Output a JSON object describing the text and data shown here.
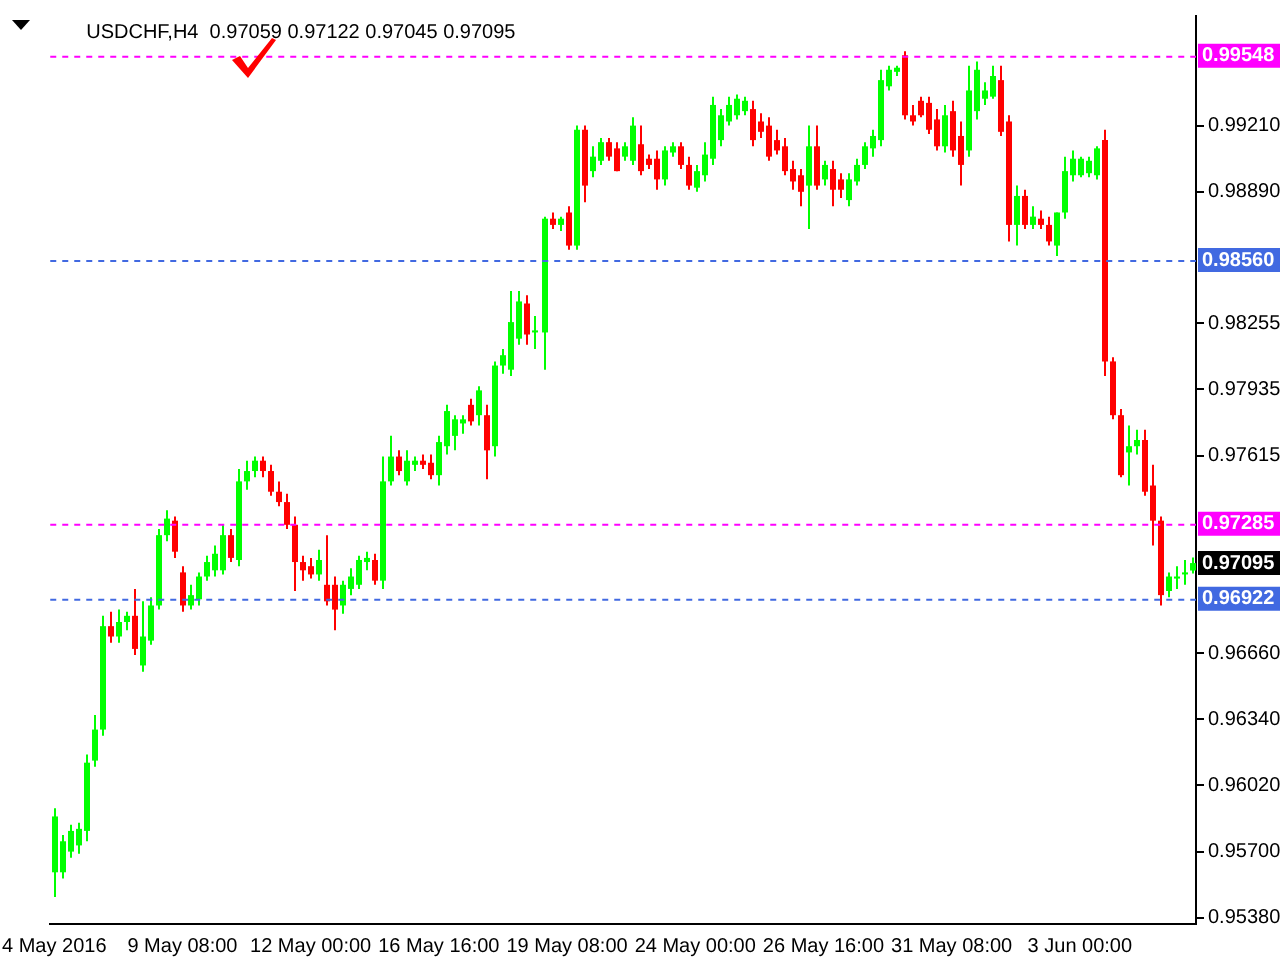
{
  "chart_data": {
    "type": "candlestick",
    "title": "USDCHF,H4  0.97059 0.97122 0.97045 0.97095",
    "categories": [
      "4 May 2016",
      null,
      null,
      null,
      null,
      null,
      null,
      null,
      null,
      null,
      null,
      null,
      null,
      null,
      null,
      null,
      "9 May 08:00",
      null,
      null,
      null,
      null,
      null,
      null,
      null,
      null,
      null,
      null,
      null,
      null,
      null,
      null,
      null,
      "12 May 00:00",
      null,
      null,
      null,
      null,
      null,
      null,
      null,
      null,
      null,
      null,
      null,
      null,
      null,
      null,
      null,
      "16 May 16:00",
      null,
      null,
      null,
      null,
      null,
      null,
      null,
      null,
      null,
      null,
      null,
      null,
      null,
      null,
      null,
      "19 May 08:00",
      null,
      null,
      null,
      null,
      null,
      null,
      null,
      null,
      null,
      null,
      null,
      null,
      null,
      null,
      null,
      "24 May 00:00",
      null,
      null,
      null,
      null,
      null,
      null,
      null,
      null,
      null,
      null,
      null,
      null,
      null,
      null,
      null,
      "26 May 16:00",
      null,
      null,
      null,
      null,
      null,
      null,
      null,
      null,
      null,
      null,
      null,
      null,
      null,
      null,
      null,
      "31 May 08:00",
      null,
      null,
      null,
      null,
      null,
      null,
      null,
      null,
      null,
      null,
      null,
      null,
      null,
      null,
      null,
      "3 Jun 00:00",
      null,
      null,
      null,
      null,
      null,
      null,
      null,
      null,
      null,
      null,
      null,
      null,
      null,
      null
    ],
    "ohlc": [
      [
        0.956,
        0.9591,
        0.9548,
        0.9587
      ],
      [
        0.956,
        0.9578,
        0.9557,
        0.9575
      ],
      [
        0.957,
        0.9583,
        0.9567,
        0.958
      ],
      [
        0.9573,
        0.9584,
        0.9569,
        0.9581
      ],
      [
        0.958,
        0.9617,
        0.9575,
        0.9613
      ],
      [
        0.9614,
        0.9636,
        0.9611,
        0.9629
      ],
      [
        0.9629,
        0.9684,
        0.9626,
        0.9679
      ],
      [
        0.9679,
        0.9686,
        0.9671,
        0.9674
      ],
      [
        0.9674,
        0.9687,
        0.9671,
        0.9681
      ],
      [
        0.9681,
        0.9686,
        0.9677,
        0.9684
      ],
      [
        0.9684,
        0.9697,
        0.9665,
        0.9668
      ],
      [
        0.966,
        0.9691,
        0.9657,
        0.9674
      ],
      [
        0.9672,
        0.9693,
        0.967,
        0.9689
      ],
      [
        0.9689,
        0.9726,
        0.9687,
        0.9723
      ],
      [
        0.9723,
        0.9735,
        0.972,
        0.9731
      ],
      [
        0.973,
        0.9732,
        0.9712,
        0.9715
      ],
      [
        0.9705,
        0.9708,
        0.9686,
        0.9689
      ],
      [
        0.9689,
        0.9699,
        0.9687,
        0.9694
      ],
      [
        0.9692,
        0.9705,
        0.9689,
        0.9703
      ],
      [
        0.9703,
        0.9713,
        0.9701,
        0.971
      ],
      [
        0.9706,
        0.9718,
        0.9703,
        0.9714
      ],
      [
        0.9706,
        0.9728,
        0.9704,
        0.9723
      ],
      [
        0.9723,
        0.9726,
        0.971,
        0.9712
      ],
      [
        0.9711,
        0.9755,
        0.9708,
        0.9749
      ],
      [
        0.9749,
        0.9759,
        0.9745,
        0.9754
      ],
      [
        0.9754,
        0.9761,
        0.9751,
        0.9759
      ],
      [
        0.9759,
        0.9761,
        0.9751,
        0.9754
      ],
      [
        0.9754,
        0.9757,
        0.9742,
        0.9744
      ],
      [
        0.9744,
        0.9749,
        0.9737,
        0.9739
      ],
      [
        0.9739,
        0.9743,
        0.9726,
        0.9728
      ],
      [
        0.9728,
        0.9732,
        0.9696,
        0.971
      ],
      [
        0.971,
        0.9713,
        0.9701,
        0.9706
      ],
      [
        0.9708,
        0.9712,
        0.9702,
        0.9704
      ],
      [
        0.9704,
        0.9716,
        0.9701,
        0.9711
      ],
      [
        0.9699,
        0.9723,
        0.9689,
        0.9691
      ],
      [
        0.9699,
        0.9703,
        0.9677,
        0.9687
      ],
      [
        0.9689,
        0.9701,
        0.9685,
        0.9699
      ],
      [
        0.9697,
        0.9707,
        0.9694,
        0.9703
      ],
      [
        0.9699,
        0.9713,
        0.9697,
        0.9711
      ],
      [
        0.971,
        0.9715,
        0.9706,
        0.9712
      ],
      [
        0.9711,
        0.9714,
        0.9699,
        0.9701
      ],
      [
        0.9701,
        0.9761,
        0.9697,
        0.9749
      ],
      [
        0.9749,
        0.9771,
        0.9747,
        0.9761
      ],
      [
        0.9761,
        0.9764,
        0.9752,
        0.9754
      ],
      [
        0.9749,
        0.9764,
        0.9747,
        0.9759
      ],
      [
        0.9757,
        0.9761,
        0.9754,
        0.9759
      ],
      [
        0.9759,
        0.9762,
        0.9755,
        0.9757
      ],
      [
        0.9758,
        0.9762,
        0.975,
        0.9752
      ],
      [
        0.9752,
        0.9771,
        0.9747,
        0.9768
      ],
      [
        0.9766,
        0.9786,
        0.9762,
        0.9783
      ],
      [
        0.9771,
        0.9781,
        0.9764,
        0.9779
      ],
      [
        0.9777,
        0.9781,
        0.9772,
        0.9779
      ],
      [
        0.9786,
        0.9789,
        0.9776,
        0.9778
      ],
      [
        0.9781,
        0.9795,
        0.9776,
        0.9793
      ],
      [
        0.9781,
        0.9786,
        0.975,
        0.9764
      ],
      [
        0.9766,
        0.9807,
        0.9761,
        0.9805
      ],
      [
        0.9805,
        0.9813,
        0.9801,
        0.981
      ],
      [
        0.9803,
        0.9841,
        0.98,
        0.9826
      ],
      [
        0.9818,
        0.9841,
        0.9815,
        0.9836
      ],
      [
        0.9835,
        0.9839,
        0.9815,
        0.982
      ],
      [
        0.9821,
        0.9829,
        0.9813,
        0.9822
      ],
      [
        0.9821,
        0.9877,
        0.9803,
        0.9876
      ],
      [
        0.9876,
        0.9879,
        0.9871,
        0.9873
      ],
      [
        0.9873,
        0.9877,
        0.987,
        0.9876
      ],
      [
        0.9879,
        0.9882,
        0.9861,
        0.9863
      ],
      [
        0.9863,
        0.9921,
        0.9861,
        0.9919
      ],
      [
        0.9919,
        0.9921,
        0.9884,
        0.9892
      ],
      [
        0.9899,
        0.9911,
        0.9896,
        0.9906
      ],
      [
        0.9904,
        0.9915,
        0.9902,
        0.9913
      ],
      [
        0.9913,
        0.9915,
        0.9904,
        0.9906
      ],
      [
        0.991,
        0.9913,
        0.9899,
        0.9899
      ],
      [
        0.9906,
        0.9913,
        0.9904,
        0.9911
      ],
      [
        0.9904,
        0.9925,
        0.9902,
        0.9921
      ],
      [
        0.9912,
        0.9921,
        0.9897,
        0.9899
      ],
      [
        0.9905,
        0.9907,
        0.99,
        0.9902
      ],
      [
        0.9905,
        0.9909,
        0.989,
        0.9895
      ],
      [
        0.9895,
        0.9911,
        0.9892,
        0.9909
      ],
      [
        0.9908,
        0.9913,
        0.9906,
        0.9911
      ],
      [
        0.9911,
        0.9913,
        0.99,
        0.9902
      ],
      [
        0.9902,
        0.9906,
        0.989,
        0.9892
      ],
      [
        0.9891,
        0.9902,
        0.9889,
        0.9899
      ],
      [
        0.9897,
        0.9913,
        0.9894,
        0.9907
      ],
      [
        0.9905,
        0.9935,
        0.9902,
        0.9931
      ],
      [
        0.9914,
        0.9929,
        0.9911,
        0.9926
      ],
      [
        0.9923,
        0.9935,
        0.9921,
        0.9931
      ],
      [
        0.9926,
        0.9936,
        0.9924,
        0.9934
      ],
      [
        0.9928,
        0.9935,
        0.9926,
        0.9933
      ],
      [
        0.9929,
        0.9933,
        0.9911,
        0.9914
      ],
      [
        0.9923,
        0.9927,
        0.9915,
        0.9918
      ],
      [
        0.9921,
        0.9925,
        0.9904,
        0.9906
      ],
      [
        0.9914,
        0.9919,
        0.9907,
        0.9909
      ],
      [
        0.9911,
        0.9915,
        0.9897,
        0.9899
      ],
      [
        0.99,
        0.9904,
        0.989,
        0.9894
      ],
      [
        0.9897,
        0.99,
        0.9882,
        0.9889
      ],
      [
        0.9892,
        0.9921,
        0.9871,
        0.9911
      ],
      [
        0.9911,
        0.9921,
        0.989,
        0.9892
      ],
      [
        0.9895,
        0.9904,
        0.9892,
        0.9902
      ],
      [
        0.99,
        0.9904,
        0.9882,
        0.989
      ],
      [
        0.9895,
        0.9898,
        0.9886,
        0.989
      ],
      [
        0.9885,
        0.9898,
        0.9882,
        0.9895
      ],
      [
        0.9894,
        0.9905,
        0.9892,
        0.9902
      ],
      [
        0.9902,
        0.9913,
        0.99,
        0.9911
      ],
      [
        0.991,
        0.9919,
        0.9906,
        0.9916
      ],
      [
        0.9914,
        0.9948,
        0.9911,
        0.9943
      ],
      [
        0.994,
        0.995,
        0.9938,
        0.9948
      ],
      [
        0.9947,
        0.995,
        0.9945,
        0.9949
      ],
      [
        0.9955,
        0.9957,
        0.9924,
        0.9926
      ],
      [
        0.9926,
        0.9931,
        0.9921,
        0.9923
      ],
      [
        0.9933,
        0.9935,
        0.9925,
        0.9926
      ],
      [
        0.9932,
        0.9935,
        0.9917,
        0.9919
      ],
      [
        0.9924,
        0.9929,
        0.9909,
        0.9911
      ],
      [
        0.9911,
        0.9931,
        0.9908,
        0.9926
      ],
      [
        0.9928,
        0.9933,
        0.9906,
        0.9909
      ],
      [
        0.9916,
        0.9923,
        0.9892,
        0.9902
      ],
      [
        0.9909,
        0.995,
        0.9906,
        0.9938
      ],
      [
        0.9928,
        0.9952,
        0.9924,
        0.9948
      ],
      [
        0.9934,
        0.9942,
        0.9931,
        0.9938
      ],
      [
        0.9935,
        0.995,
        0.9934,
        0.9945
      ],
      [
        0.9943,
        0.995,
        0.9916,
        0.9918
      ],
      [
        0.9923,
        0.9926,
        0.9865,
        0.9873
      ],
      [
        0.9873,
        0.9892,
        0.9863,
        0.9887
      ],
      [
        0.9887,
        0.989,
        0.9871,
        0.9873
      ],
      [
        0.9873,
        0.9882,
        0.9871,
        0.9877
      ],
      [
        0.9876,
        0.988,
        0.9871,
        0.9873
      ],
      [
        0.9873,
        0.9877,
        0.9863,
        0.9865
      ],
      [
        0.9863,
        0.9879,
        0.9858,
        0.9879
      ],
      [
        0.9879,
        0.9906,
        0.9876,
        0.9899
      ],
      [
        0.9897,
        0.9909,
        0.9894,
        0.9905
      ],
      [
        0.9897,
        0.9906,
        0.9896,
        0.9905
      ],
      [
        0.9898,
        0.9906,
        0.9896,
        0.9904
      ],
      [
        0.9897,
        0.9911,
        0.9895,
        0.991
      ],
      [
        0.9914,
        0.9919,
        0.98,
        0.9807
      ],
      [
        0.9807,
        0.9809,
        0.9779,
        0.9781
      ],
      [
        0.9781,
        0.9784,
        0.9751,
        0.9752
      ],
      [
        0.9763,
        0.9776,
        0.9747,
        0.9766
      ],
      [
        0.9766,
        0.9774,
        0.9762,
        0.9769
      ],
      [
        0.9769,
        0.9774,
        0.9742,
        0.9744
      ],
      [
        0.9747,
        0.9757,
        0.9718,
        0.973
      ],
      [
        0.973,
        0.9732,
        0.9689,
        0.9694
      ],
      [
        0.9696,
        0.9705,
        0.9693,
        0.9703
      ],
      [
        0.9702,
        0.9708,
        0.9697,
        0.9703
      ],
      [
        0.9704,
        0.9711,
        0.9699,
        0.9705
      ],
      [
        0.97059,
        0.97122,
        0.97045,
        0.97095
      ]
    ],
    "colors": [
      "#00ff00",
      "#00ff00",
      "#00ff00",
      "#00ff00",
      "#00ff00",
      "#00ff00",
      "#00ff00",
      "#ff0000",
      "#00ff00",
      "#00ff00",
      "#ff0000",
      "#00ff00",
      "#00ff00",
      "#00ff00",
      "#00ff00",
      "#ff0000",
      "#ff0000",
      "#00ff00",
      "#00ff00",
      "#00ff00",
      "#00ff00",
      "#00ff00",
      "#ff0000",
      "#00ff00",
      "#00ff00",
      "#00ff00",
      "#ff0000",
      "#ff0000",
      "#ff0000",
      "#ff0000",
      "#ff0000",
      "#ff0000",
      "#ff0000",
      "#00ff00",
      "#ff0000",
      "#ff0000",
      "#00ff00",
      "#00ff00",
      "#00ff00",
      "#00ff00",
      "#ff0000",
      "#00ff00",
      "#00ff00",
      "#ff0000",
      "#00ff00",
      "#00ff00",
      "#ff0000",
      "#ff0000",
      "#00ff00",
      "#00ff00",
      "#00ff00",
      "#00ff00",
      "#ff0000",
      "#00ff00",
      "#ff0000",
      "#00ff00",
      "#00ff00",
      "#00ff00",
      "#00ff00",
      "#ff0000",
      "#00ff00",
      "#00ff00",
      "#ff0000",
      "#00ff00",
      "#ff0000",
      "#00ff00",
      "#ff0000",
      "#00ff00",
      "#00ff00",
      "#ff0000",
      "#ff0000",
      "#00ff00",
      "#00ff00",
      "#ff0000",
      "#ff0000",
      "#ff0000",
      "#00ff00",
      "#00ff00",
      "#ff0000",
      "#ff0000",
      "#00ff00",
      "#00ff00",
      "#00ff00",
      "#00ff00",
      "#00ff00",
      "#00ff00",
      "#00ff00",
      "#ff0000",
      "#ff0000",
      "#ff0000",
      "#ff0000",
      "#ff0000",
      "#ff0000",
      "#ff0000",
      "#00ff00",
      "#ff0000",
      "#00ff00",
      "#ff0000",
      "#ff0000",
      "#00ff00",
      "#00ff00",
      "#00ff00",
      "#00ff00",
      "#00ff00",
      "#00ff00",
      "#00ff00",
      "#ff0000",
      "#ff0000",
      "#ff0000",
      "#ff0000",
      "#ff0000",
      "#00ff00",
      "#ff0000",
      "#ff0000",
      "#00ff00",
      "#00ff00",
      "#00ff00",
      "#00ff00",
      "#ff0000",
      "#ff0000",
      "#00ff00",
      "#ff0000",
      "#00ff00",
      "#ff0000",
      "#ff0000",
      "#00ff00",
      "#00ff00",
      "#00ff00",
      "#00ff00",
      "#00ff00",
      "#00ff00",
      "#ff0000",
      "#ff0000",
      "#ff0000",
      "#00ff00",
      "#00ff00",
      "#ff0000",
      "#ff0000",
      "#ff0000",
      "#00ff00",
      "#00ff00",
      "#00ff00",
      "#00ff00"
    ],
    "ylim": [
      0.9535,
      0.9974
    ],
    "yticks": [
      {
        "value": 0.9921,
        "label": "0.99210"
      },
      {
        "value": 0.9889,
        "label": "0.98890"
      },
      {
        "value": 0.98255,
        "label": "0.98255"
      },
      {
        "value": 0.97935,
        "label": "0.97935"
      },
      {
        "value": 0.97615,
        "label": "0.97615"
      },
      {
        "value": 0.9666,
        "label": "0.96660"
      },
      {
        "value": 0.9634,
        "label": "0.96340"
      },
      {
        "value": 0.9602,
        "label": "0.96020"
      },
      {
        "value": 0.957,
        "label": "0.95700"
      },
      {
        "value": 0.9538,
        "label": "0.95380"
      }
    ],
    "ref_lines": [
      {
        "axis": "y",
        "value": 0.99548,
        "label": "0.99548",
        "color": "#ff00ff",
        "line_style": "dashed"
      },
      {
        "axis": "y",
        "value": 0.9856,
        "label": "0.98560",
        "color": "#4169e1",
        "line_style": "dashed"
      },
      {
        "axis": "y",
        "value": 0.97285,
        "label": "0.97285",
        "color": "#ff00ff",
        "line_style": "dashed"
      },
      {
        "axis": "y",
        "value": 0.96922,
        "label": "0.96922",
        "color": "#4169e1",
        "line_style": "dashed"
      }
    ],
    "annotations": [
      "0.97095"
    ]
  }
}
